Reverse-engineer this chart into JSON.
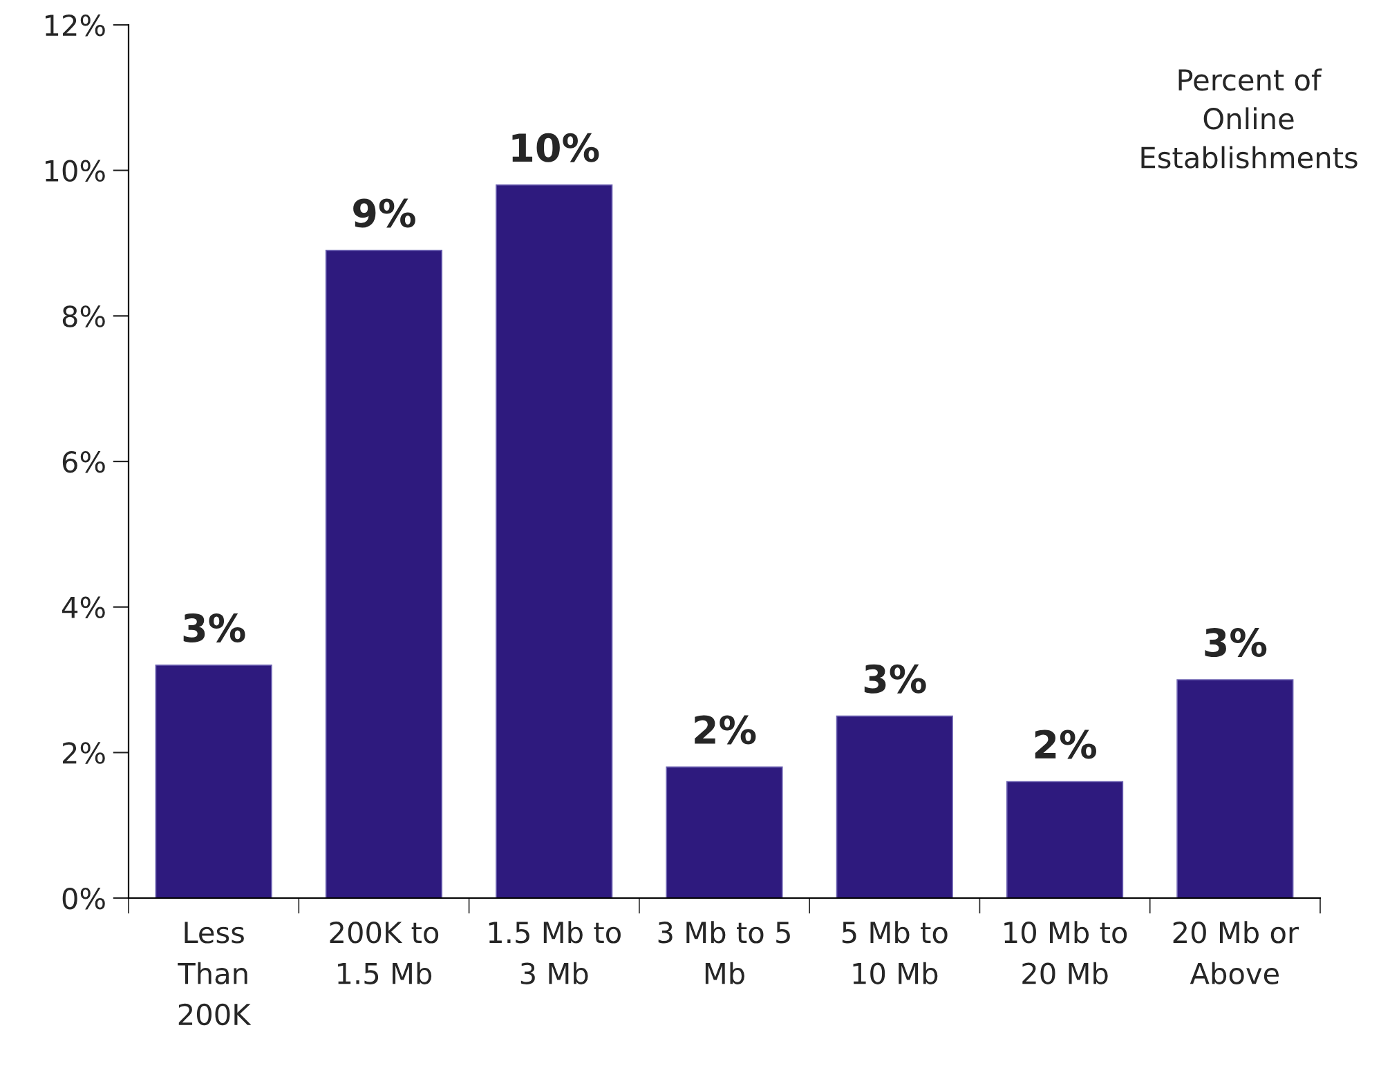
{
  "chart_data": {
    "type": "bar",
    "categories": [
      "Less\nThan\n200K",
      "200K to\n1.5 Mb",
      "1.5 Mb to\n3 Mb",
      "3 Mb to 5\nMb",
      "5 Mb to\n10 Mb",
      "10 Mb to\n20 Mb",
      "20 Mb or\nAbove"
    ],
    "values": [
      3.2,
      8.9,
      9.8,
      1.8,
      2.5,
      1.6,
      3.0
    ],
    "value_labels": [
      "3%",
      "9%",
      "10%",
      "2%",
      "3%",
      "2%",
      "3%"
    ],
    "color": "#2e1a7e",
    "ylim": [
      0,
      12
    ],
    "yticks": [
      {
        "value": 0,
        "label": "0%"
      },
      {
        "value": 2,
        "label": "2%"
      },
      {
        "value": 4,
        "label": "4%"
      },
      {
        "value": 6,
        "label": "6%"
      },
      {
        "value": 8,
        "label": "8%"
      },
      {
        "value": 10,
        "label": "10%"
      },
      {
        "value": 12,
        "label": "12%"
      }
    ],
    "annotations": [
      "Percent of\nOnline\nEstablishments"
    ],
    "grid": false,
    "legend": false
  }
}
